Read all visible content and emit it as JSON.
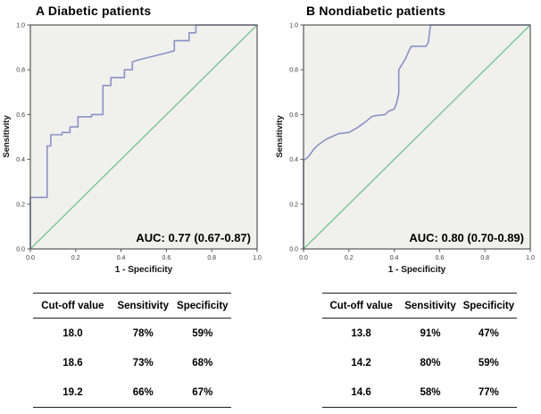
{
  "colors": {
    "plot_bg": "#f0f0ec",
    "plot_border": "#565656",
    "tick": "#565656",
    "roc_curve": "#8a92c6",
    "reference_line": "#7cc494",
    "text": "#000000"
  },
  "chart_data": [
    {
      "type": "line",
      "title": "A Diabetic patients",
      "xlabel": "1 - Specificity",
      "ylabel": "Sensitivity",
      "xlim": [
        0,
        1
      ],
      "ylim": [
        0,
        1
      ],
      "x_ticks": [
        "0.0",
        "0.2",
        "0.4",
        "0.6",
        "0.8",
        "1.0"
      ],
      "y_ticks": [
        "0.0",
        "0.2",
        "0.4",
        "0.6",
        "0.8",
        "1.0"
      ],
      "grid": false,
      "legend": null,
      "auc": 0.77,
      "auc_ci": [
        0.67,
        0.87
      ],
      "auc_label": "AUC: 0.77 (0.67-0.87)",
      "series": [
        {
          "name": "ROC curve",
          "points": [
            [
              0,
              0
            ],
            [
              0,
              0.23
            ],
            [
              0.074,
              0.23
            ],
            [
              0.074,
              0.46
            ],
            [
              0.09,
              0.46
            ],
            [
              0.09,
              0.51
            ],
            [
              0.14,
              0.51
            ],
            [
              0.14,
              0.52
            ],
            [
              0.175,
              0.52
            ],
            [
              0.175,
              0.545
            ],
            [
              0.21,
              0.545
            ],
            [
              0.21,
              0.59
            ],
            [
              0.27,
              0.59
            ],
            [
              0.27,
              0.6
            ],
            [
              0.32,
              0.6
            ],
            [
              0.32,
              0.73
            ],
            [
              0.355,
              0.73
            ],
            [
              0.355,
              0.765
            ],
            [
              0.415,
              0.765
            ],
            [
              0.415,
              0.8
            ],
            [
              0.45,
              0.8
            ],
            [
              0.45,
              0.835
            ],
            [
              0.48,
              0.845
            ],
            [
              0.54,
              0.86
            ],
            [
              0.6,
              0.875
            ],
            [
              0.635,
              0.885
            ],
            [
              0.635,
              0.93
            ],
            [
              0.7,
              0.93
            ],
            [
              0.7,
              0.965
            ],
            [
              0.73,
              0.965
            ],
            [
              0.73,
              1
            ],
            [
              1,
              1
            ]
          ]
        },
        {
          "name": "Reference line",
          "points": [
            [
              0,
              0
            ],
            [
              1,
              1
            ]
          ]
        }
      ],
      "cutoff_table": {
        "headers": [
          "Cut-off value",
          "Sensitivity",
          "Specificity"
        ],
        "rows": [
          [
            "18.0",
            "78%",
            "59%"
          ],
          [
            "18.6",
            "73%",
            "68%"
          ],
          [
            "19.2",
            "66%",
            "67%"
          ]
        ]
      }
    },
    {
      "type": "line",
      "title": "B Nondiabetic patients",
      "xlabel": "1 - Specificity",
      "ylabel": "Sensitivity",
      "xlim": [
        0,
        1
      ],
      "ylim": [
        0,
        1
      ],
      "x_ticks": [
        "0.0",
        "0.2",
        "0.4",
        "0.6",
        "0.8",
        "1.0"
      ],
      "y_ticks": [
        "0.0",
        "0.2",
        "0.4",
        "0.6",
        "0.8",
        "1.0"
      ],
      "grid": false,
      "legend": null,
      "auc": 0.8,
      "auc_ci": [
        0.7,
        0.89
      ],
      "auc_label": "AUC: 0.80 (0.70-0.89)",
      "series": [
        {
          "name": "ROC curve",
          "points": [
            [
              0,
              0
            ],
            [
              0,
              0.395
            ],
            [
              0.02,
              0.41
            ],
            [
              0.045,
              0.445
            ],
            [
              0.065,
              0.465
            ],
            [
              0.1,
              0.49
            ],
            [
              0.155,
              0.515
            ],
            [
              0.2,
              0.52
            ],
            [
              0.235,
              0.54
            ],
            [
              0.27,
              0.565
            ],
            [
              0.3,
              0.59
            ],
            [
              0.315,
              0.595
            ],
            [
              0.36,
              0.6
            ],
            [
              0.375,
              0.615
            ],
            [
              0.4,
              0.625
            ],
            [
              0.41,
              0.65
            ],
            [
              0.42,
              0.695
            ],
            [
              0.42,
              0.8
            ],
            [
              0.435,
              0.825
            ],
            [
              0.45,
              0.85
            ],
            [
              0.465,
              0.885
            ],
            [
              0.475,
              0.905
            ],
            [
              0.54,
              0.905
            ],
            [
              0.55,
              0.92
            ],
            [
              0.56,
              1
            ],
            [
              1,
              1
            ]
          ]
        },
        {
          "name": "Reference line",
          "points": [
            [
              0,
              0
            ],
            [
              1,
              1
            ]
          ]
        }
      ],
      "cutoff_table": {
        "headers": [
          "Cut-off value",
          "Sensitivity",
          "Specificity"
        ],
        "rows": [
          [
            "13.8",
            "91%",
            "47%"
          ],
          [
            "14.2",
            "80%",
            "59%"
          ],
          [
            "14.6",
            "58%",
            "77%"
          ]
        ]
      }
    }
  ]
}
